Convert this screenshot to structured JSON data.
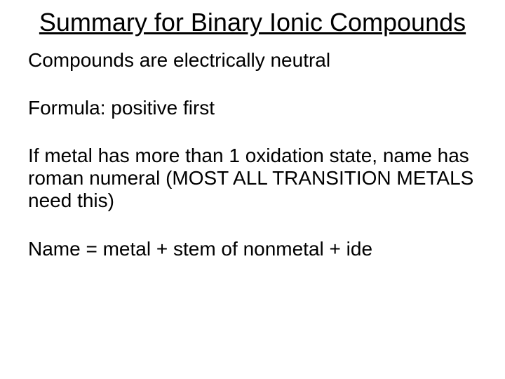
{
  "title": "Summary for Binary Ionic Compounds",
  "paragraphs": [
    "Compounds are electrically neutral",
    "Formula:  positive first",
    "If metal has more than 1 oxidation state, name has roman numeral (MOST ALL TRANSITION METALS need this)",
    "Name = metal + stem of nonmetal + ide"
  ],
  "colors": {
    "background": "#ffffff",
    "text": "#000000"
  },
  "typography": {
    "title_fontsize": 36,
    "body_fontsize": 28,
    "font_family": "Arial"
  }
}
